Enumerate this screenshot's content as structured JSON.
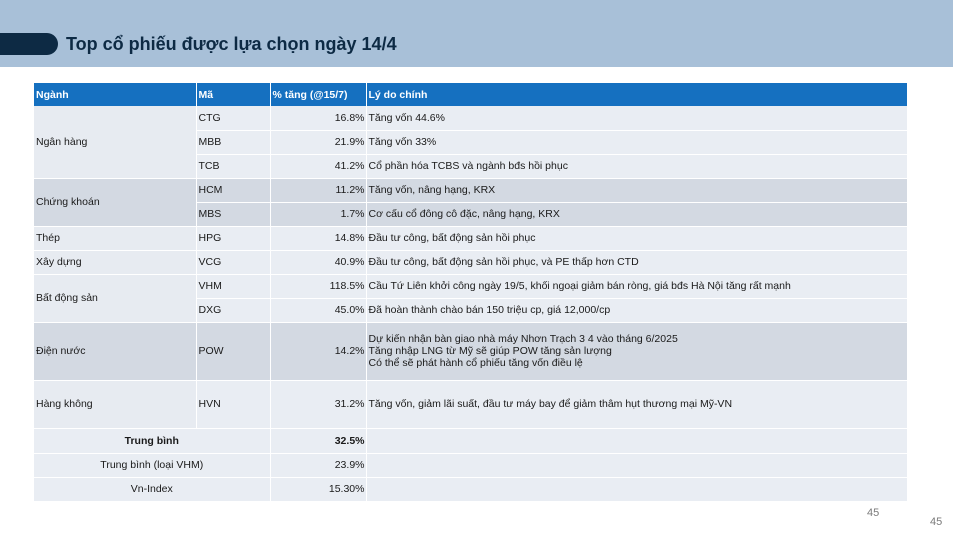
{
  "slide": {
    "title": "Top cổ phiếu được lựa chọn ngày 14/4",
    "page_number_inner": "45",
    "page_number_outer": "45"
  },
  "table": {
    "headers": [
      "Ngành",
      "Mã",
      "% tăng (@15/7)",
      "Lý do chính"
    ],
    "sectors": {
      "bank": "Ngân hàng",
      "securities": "Chứng khoán",
      "steel": "Thép",
      "construction": "Xây dựng",
      "realestate": "Bất động sản",
      "utilities": "Điện nước",
      "aviation": "Hàng không"
    },
    "rows": [
      {
        "ticker": "CTG",
        "pct": "16.8%",
        "reason": "Tăng vốn 44.6%"
      },
      {
        "ticker": "MBB",
        "pct": "21.9%",
        "reason": "Tăng vốn 33%"
      },
      {
        "ticker": "TCB",
        "pct": "41.2%",
        "reason": "Cổ phần hóa TCBS và ngành bđs hồi phục"
      },
      {
        "ticker": "HCM",
        "pct": "11.2%",
        "reason": "Tăng vốn, nâng hạng, KRX"
      },
      {
        "ticker": "MBS",
        "pct": "1.7%",
        "reason": "Cơ cấu cổ đông cô đặc, nâng hạng, KRX"
      },
      {
        "ticker": "HPG",
        "pct": "14.8%",
        "reason": "Đầu tư công, bất động sản hồi phục"
      },
      {
        "ticker": "VCG",
        "pct": "40.9%",
        "reason": "Đầu tư công, bất động sản hồi phục, và PE thấp hơn CTD"
      },
      {
        "ticker": "VHM",
        "pct": "118.5%",
        "reason": "Cầu Tứ Liên khởi công ngày 19/5, khối ngoại giảm bán ròng, giá bđs Hà Nội tăng rất mạnh"
      },
      {
        "ticker": "DXG",
        "pct": "45.0%",
        "reason": "Đã hoàn thành chào bán 150 triệu cp, giá 12,000/cp"
      },
      {
        "ticker": "POW",
        "pct": "14.2%",
        "reason_lines": [
          "Dự kiến nhận bàn giao nhà máy Nhơn Trạch 3 4 vào tháng 6/2025",
          "Tăng nhập LNG từ Mỹ sẽ giúp POW tăng sản lượng",
          "Có thể sẽ phát hành cổ phiếu tăng vốn điều lệ"
        ]
      },
      {
        "ticker": "HVN",
        "pct": "31.2%",
        "reason": "Tăng vốn, giảm lãi suất, đầu tư máy bay để giảm thâm hụt thương mại Mỹ-VN"
      }
    ],
    "summary": [
      {
        "label": "Trung bình",
        "value": "32.5%"
      },
      {
        "label": "Trung bình (loại VHM)",
        "value": "23.9%"
      },
      {
        "label": "Vn-Index",
        "value": "15.30%"
      }
    ]
  }
}
